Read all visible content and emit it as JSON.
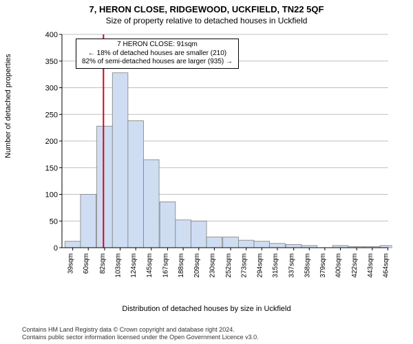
{
  "header": {
    "address": "7, HERON CLOSE, RIDGEWOOD, UCKFIELD, TN22 5QF",
    "subtitle": "Size of property relative to detached houses in Uckfield"
  },
  "chart": {
    "type": "histogram",
    "ylabel": "Number of detached properties",
    "xlabel": "Distribution of detached houses by size in Uckfield",
    "background_color": "#ffffff",
    "grid_color": "#bfbfbf",
    "bar_fill": "#cfddf3",
    "bar_stroke": "#7f7f7f",
    "marker_color": "#d0021b",
    "marker_x": 91,
    "x_min": 35,
    "x_max": 475,
    "y_min": 0,
    "y_max": 400,
    "y_ticks": [
      0,
      50,
      100,
      150,
      200,
      250,
      300,
      350,
      400
    ],
    "x_ticks": [
      39,
      60,
      82,
      103,
      124,
      145,
      167,
      188,
      209,
      230,
      252,
      273,
      294,
      315,
      337,
      358,
      379,
      400,
      422,
      443,
      464
    ],
    "x_tick_suffix": "sqm",
    "bin_width": 21,
    "bars": [
      {
        "x": 39,
        "y": 12
      },
      {
        "x": 60,
        "y": 100
      },
      {
        "x": 82,
        "y": 228
      },
      {
        "x": 103,
        "y": 328
      },
      {
        "x": 124,
        "y": 238
      },
      {
        "x": 145,
        "y": 165
      },
      {
        "x": 167,
        "y": 86
      },
      {
        "x": 188,
        "y": 52
      },
      {
        "x": 209,
        "y": 50
      },
      {
        "x": 230,
        "y": 20
      },
      {
        "x": 252,
        "y": 20
      },
      {
        "x": 273,
        "y": 14
      },
      {
        "x": 294,
        "y": 12
      },
      {
        "x": 315,
        "y": 8
      },
      {
        "x": 337,
        "y": 6
      },
      {
        "x": 358,
        "y": 4
      },
      {
        "x": 379,
        "y": 0
      },
      {
        "x": 400,
        "y": 4
      },
      {
        "x": 422,
        "y": 2
      },
      {
        "x": 443,
        "y": 2
      },
      {
        "x": 464,
        "y": 4
      }
    ],
    "annotation": {
      "line1": "7 HERON CLOSE: 91sqm",
      "line2": "← 18% of detached houses are smaller (210)",
      "line3": "82% of semi-detached houses are larger (935) →"
    }
  },
  "footer": {
    "line1": "Contains HM Land Registry data © Crown copyright and database right 2024.",
    "line2": "Contains public sector information licensed under the Open Government Licence v3.0."
  }
}
